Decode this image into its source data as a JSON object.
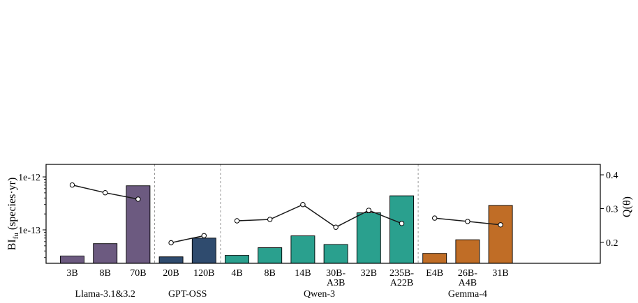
{
  "chart_data": {
    "type": "bar",
    "title": "",
    "ylabel_left": {
      "main": "BI",
      "sub": "fu",
      "unit": " (species·yr)"
    },
    "ylabel_right": "Q(θ)",
    "left_scale": "log",
    "left_ticks": [
      "1e-12",
      "1e-13"
    ],
    "right_ticks": [
      "0.4",
      "0.3",
      "0.2"
    ],
    "grid": false,
    "groups": [
      {
        "name": "Llama-3.1&3.2",
        "color": "#6c5a80",
        "models": [
          "3B",
          "8B",
          "70B"
        ],
        "bi_values": [
          3.2e-14,
          5.5e-14,
          6.8e-13
        ],
        "q_values": [
          0.37,
          0.347,
          0.328
        ]
      },
      {
        "name": "GPT-OSS",
        "color": "#2f4b6e",
        "models": [
          "20B",
          "120B"
        ],
        "bi_values": [
          3.1e-14,
          7e-14
        ],
        "q_values": [
          0.199,
          0.22
        ]
      },
      {
        "name": "Qwen-3",
        "color": "#2aa08e",
        "models": [
          "4B",
          "8B",
          "14B",
          "30B-\nA3B",
          "32B",
          "235B-\nA22B"
        ],
        "bi_values": [
          3.3e-14,
          4.6e-14,
          7.7e-14,
          5.3e-14,
          2.1e-13,
          4.4e-13
        ],
        "q_values": [
          0.264,
          0.268,
          0.312,
          0.245,
          0.295,
          0.256
        ]
      },
      {
        "name": "Gemma-4",
        "color": "#c06d26",
        "models": [
          "E4B",
          "26B-\nA4B",
          "31B"
        ],
        "bi_values": [
          3.6e-14,
          6.5e-14,
          2.9e-13
        ],
        "q_values": [
          0.272,
          0.262,
          0.252
        ]
      }
    ]
  }
}
